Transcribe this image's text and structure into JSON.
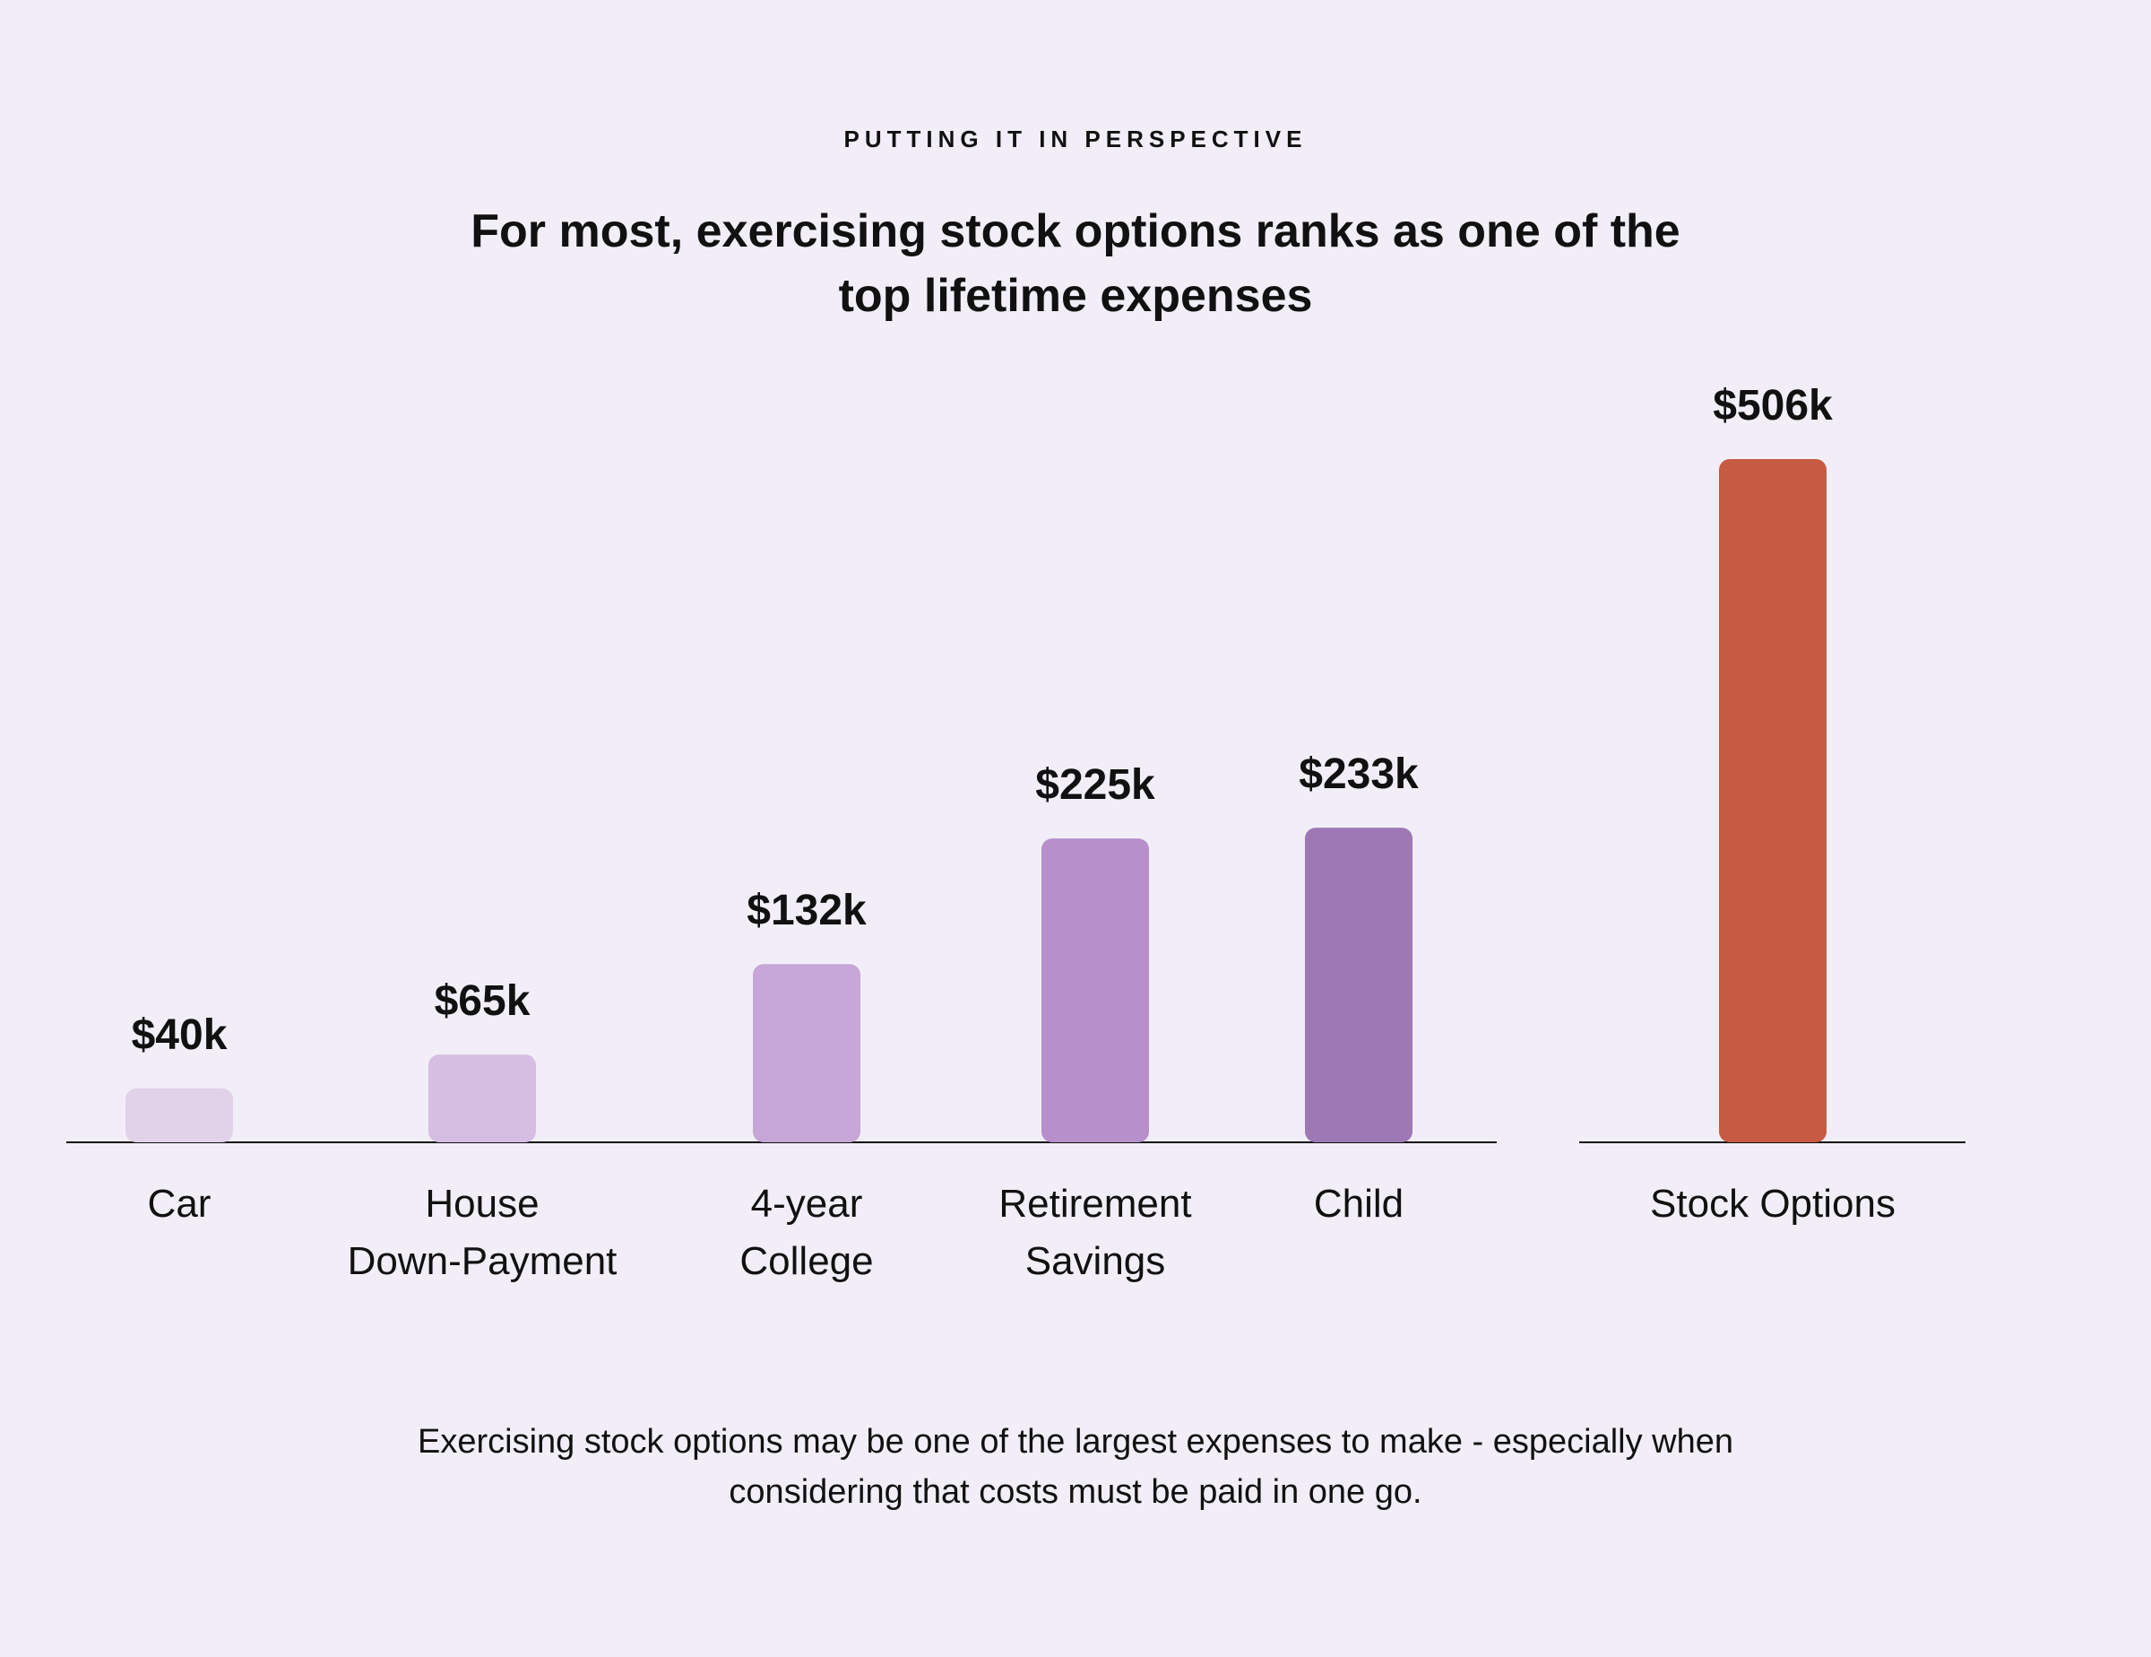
{
  "header": {
    "eyebrow": "PUTTING IT IN PERSPECTIVE",
    "title": "For most, exercising stock options ranks as one of the top lifetime expenses"
  },
  "footnote": "Exercising stock options may be one of the largest expenses to make - especially when considering that costs must be paid in one go.",
  "chart_data": {
    "type": "bar",
    "title": "For most, exercising stock options ranks as one of the top lifetime expenses",
    "xlabel": "",
    "ylabel": "",
    "grid": false,
    "legend": "none",
    "unit": "$k",
    "ylim": [
      0,
      506
    ],
    "categories": [
      [
        "Car"
      ],
      [
        "House",
        "Down-Payment"
      ],
      [
        "4-year",
        "College"
      ],
      [
        "Retirement",
        "Savings"
      ],
      [
        "Child"
      ],
      [
        "Stock Options"
      ]
    ],
    "values": [
      40,
      65,
      132,
      225,
      233,
      506
    ],
    "data_labels": [
      "$40k",
      "$65k",
      "$132k",
      "$225k",
      "$233k",
      "$506k"
    ],
    "colors": [
      "#e2d2e9",
      "#d6bde2",
      "#c6a6d6",
      "#b78fca",
      "#9e78b4",
      "#c75a42"
    ],
    "groups": [
      {
        "name": "",
        "categories_index": [
          0,
          1,
          2,
          3,
          4
        ]
      },
      {
        "name": "",
        "categories_index": [
          5
        ]
      }
    ]
  }
}
